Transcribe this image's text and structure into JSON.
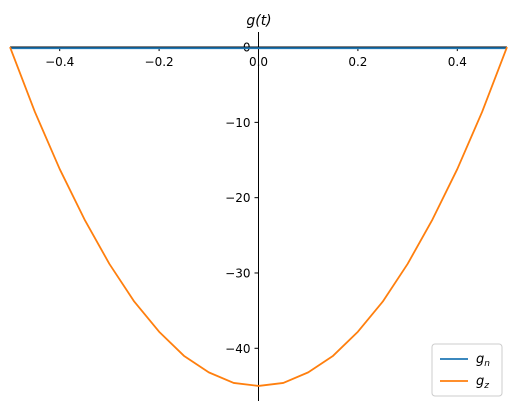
{
  "chart_data": {
    "type": "line",
    "title": "g(t)",
    "xlabel": "",
    "ylabel": "",
    "xlim": [
      -0.5,
      0.5
    ],
    "ylim": [
      -47,
      2
    ],
    "grid": false,
    "legend_position": "bottom-right",
    "x_ticks": [
      -0.4,
      -0.2,
      0.0,
      0.2,
      0.4
    ],
    "x_tick_labels": [
      "−0.4",
      "−0.2",
      "0.0",
      "0.2",
      "0.4"
    ],
    "y_ticks": [
      0,
      -10,
      -20,
      -30,
      -40
    ],
    "y_tick_labels": [
      "0",
      "−10",
      "−20",
      "−30",
      "−40"
    ],
    "series": [
      {
        "name": "g_n",
        "label_base": "g",
        "label_sub": "n",
        "color": "#1f77b4",
        "x": [
          -0.5,
          -0.4,
          -0.3,
          -0.2,
          -0.1,
          0.0,
          0.1,
          0.2,
          0.3,
          0.4,
          0.5
        ],
        "y": [
          -0.15,
          -0.15,
          -0.15,
          -0.15,
          -0.15,
          -0.15,
          -0.15,
          -0.15,
          -0.15,
          -0.15,
          -0.15
        ]
      },
      {
        "name": "g_z",
        "label_base": "g",
        "label_sub": "z",
        "color": "#ff7f0e",
        "x": [
          -0.5,
          -0.45,
          -0.4,
          -0.35,
          -0.3,
          -0.25,
          -0.2,
          -0.15,
          -0.1,
          -0.05,
          0.0,
          0.05,
          0.1,
          0.15,
          0.2,
          0.25,
          0.3,
          0.35,
          0.4,
          0.45,
          0.5
        ],
        "y": [
          0.0,
          -8.6,
          -16.2,
          -22.9,
          -28.8,
          -33.8,
          -37.8,
          -41.0,
          -43.2,
          -44.6,
          -45.0,
          -44.6,
          -43.2,
          -41.0,
          -37.8,
          -33.8,
          -28.8,
          -22.9,
          -16.2,
          -8.6,
          0.0
        ]
      }
    ]
  }
}
